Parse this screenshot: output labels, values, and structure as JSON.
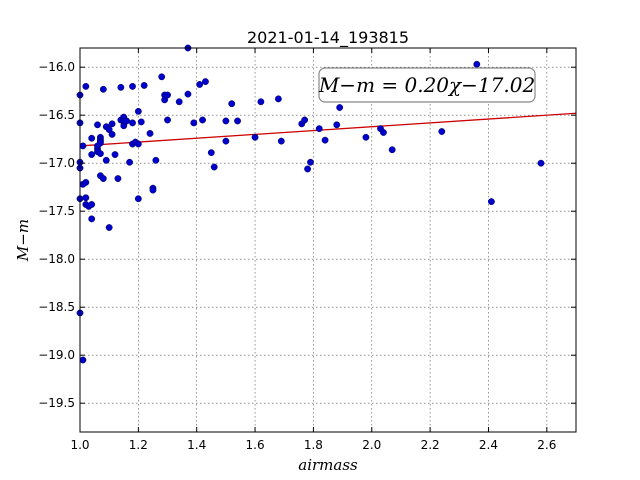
{
  "chart_data": {
    "type": "scatter",
    "title": "2021-01-14_193815",
    "xlabel": "airmass",
    "ylabel": "M−m",
    "xlim": [
      1.0,
      2.7
    ],
    "ylim": [
      -19.8,
      -15.8
    ],
    "xticks": [
      1.0,
      1.2,
      1.4,
      1.6,
      1.8,
      2.0,
      2.2,
      2.4,
      2.6
    ],
    "xtick_labels": [
      "1.0",
      "1.2",
      "1.4",
      "1.6",
      "1.8",
      "2.0",
      "2.2",
      "2.4",
      "2.6"
    ],
    "yticks": [
      -16.0,
      -16.5,
      -17.0,
      -17.5,
      -18.0,
      -18.5,
      -19.0,
      -19.5
    ],
    "ytick_labels": [
      "−16.0",
      "−16.5",
      "−17.0",
      "−17.5",
      "−18.0",
      "−18.5",
      "−19.0",
      "−19.5"
    ],
    "grid": true,
    "point_color": "#0000cc",
    "fit_color": "#cc0000",
    "fit": {
      "slope": 0.2,
      "intercept": -17.02
    },
    "annotation": "M−m = 0.20χ−17.02",
    "points": [
      [
        1.0,
        -16.29
      ],
      [
        1.0,
        -16.58
      ],
      [
        1.0,
        -16.99
      ],
      [
        1.0,
        -17.05
      ],
      [
        1.01,
        -17.22
      ],
      [
        1.0,
        -17.37
      ],
      [
        1.0,
        -18.56
      ],
      [
        1.01,
        -19.05
      ],
      [
        1.02,
        -16.2
      ],
      [
        1.01,
        -16.82
      ],
      [
        1.02,
        -17.2
      ],
      [
        1.02,
        -17.36
      ],
      [
        1.02,
        -17.43
      ],
      [
        1.03,
        -17.45
      ],
      [
        1.04,
        -16.74
      ],
      [
        1.04,
        -16.91
      ],
      [
        1.04,
        -17.43
      ],
      [
        1.04,
        -17.58
      ],
      [
        1.06,
        -16.6
      ],
      [
        1.06,
        -16.85
      ],
      [
        1.06,
        -16.82
      ],
      [
        1.06,
        -16.88
      ],
      [
        1.07,
        -16.73
      ],
      [
        1.07,
        -16.75
      ],
      [
        1.07,
        -16.77
      ],
      [
        1.07,
        -16.79
      ],
      [
        1.07,
        -16.9
      ],
      [
        1.07,
        -17.13
      ],
      [
        1.08,
        -17.16
      ],
      [
        1.08,
        -16.23
      ],
      [
        1.09,
        -16.62
      ],
      [
        1.09,
        -16.97
      ],
      [
        1.1,
        -17.67
      ],
      [
        1.1,
        -16.65
      ],
      [
        1.11,
        -16.7
      ],
      [
        1.11,
        -16.59
      ],
      [
        1.12,
        -16.91
      ],
      [
        1.13,
        -17.16
      ],
      [
        1.14,
        -16.21
      ],
      [
        1.14,
        -16.55
      ],
      [
        1.15,
        -16.52
      ],
      [
        1.15,
        -16.57
      ],
      [
        1.15,
        -16.61
      ],
      [
        1.16,
        -16.56
      ],
      [
        1.17,
        -16.99
      ],
      [
        1.18,
        -16.2
      ],
      [
        1.18,
        -16.58
      ],
      [
        1.18,
        -16.8
      ],
      [
        1.19,
        -16.78
      ],
      [
        1.2,
        -16.46
      ],
      [
        1.2,
        -16.8
      ],
      [
        1.2,
        -17.37
      ],
      [
        1.21,
        -16.57
      ],
      [
        1.22,
        -16.19
      ],
      [
        1.24,
        -16.69
      ],
      [
        1.25,
        -17.26
      ],
      [
        1.25,
        -17.28
      ],
      [
        1.26,
        -16.97
      ],
      [
        1.28,
        -16.1
      ],
      [
        1.29,
        -16.29
      ],
      [
        1.29,
        -16.34
      ],
      [
        1.3,
        -16.29
      ],
      [
        1.3,
        -16.55
      ],
      [
        1.34,
        -16.36
      ],
      [
        1.37,
        -15.8
      ],
      [
        1.37,
        -16.28
      ],
      [
        1.39,
        -16.58
      ],
      [
        1.41,
        -16.18
      ],
      [
        1.42,
        -16.55
      ],
      [
        1.43,
        -16.15
      ],
      [
        1.45,
        -16.89
      ],
      [
        1.46,
        -17.04
      ],
      [
        1.5,
        -16.56
      ],
      [
        1.5,
        -16.77
      ],
      [
        1.52,
        -16.38
      ],
      [
        1.54,
        -16.56
      ],
      [
        1.6,
        -16.73
      ],
      [
        1.62,
        -16.36
      ],
      [
        1.68,
        -16.33
      ],
      [
        1.69,
        -16.77
      ],
      [
        1.76,
        -16.59
      ],
      [
        1.77,
        -16.55
      ],
      [
        1.78,
        -17.06
      ],
      [
        1.79,
        -16.99
      ],
      [
        1.82,
        -16.64
      ],
      [
        1.84,
        -16.76
      ],
      [
        1.88,
        -16.6
      ],
      [
        1.89,
        -16.42
      ],
      [
        1.98,
        -16.73
      ],
      [
        2.03,
        -16.64
      ],
      [
        2.04,
        -16.68
      ],
      [
        2.07,
        -16.86
      ],
      [
        2.24,
        -16.67
      ],
      [
        2.36,
        -15.97
      ],
      [
        2.41,
        -17.4
      ],
      [
        2.58,
        -17.0
      ]
    ]
  }
}
